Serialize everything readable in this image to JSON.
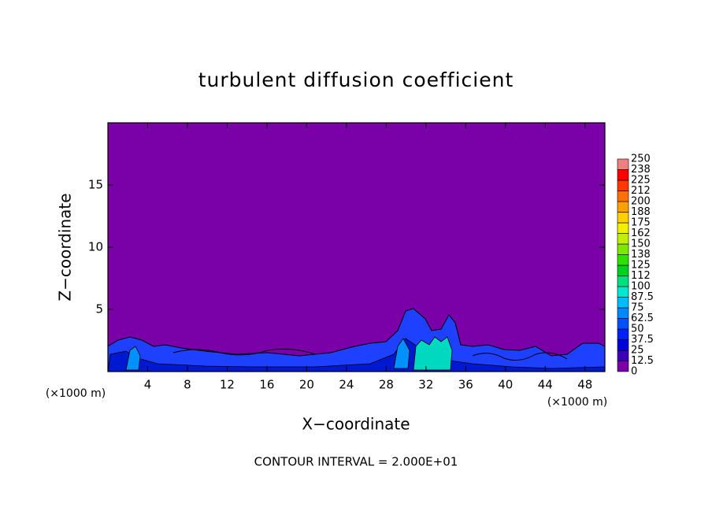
{
  "chart_data": {
    "type": "contour",
    "title": "turbulent diffusion coefficient",
    "x_label": "X−coordinate",
    "y_label": "Z−coordinate",
    "x_unit_left": "(×1000 m)",
    "x_unit_right": "(×1000 m)",
    "footer": "CONTOUR INTERVAL = 2.000E+01",
    "xlim": [
      0,
      50
    ],
    "xticks": [
      4,
      8,
      12,
      16,
      20,
      24,
      28,
      32,
      36,
      40,
      44,
      48
    ],
    "ylim": [
      0,
      20
    ],
    "yticks": [
      5,
      10,
      15
    ],
    "background_color": "#7a00a8",
    "colorbar": {
      "ticks": [
        0,
        12.5,
        25,
        37.5,
        50,
        62.5,
        75,
        87.5,
        100,
        112,
        125,
        138,
        150,
        162,
        175,
        188,
        200,
        212,
        225,
        238,
        250
      ],
      "colors": [
        "#7a00a8",
        "#3c00b8",
        "#0000d8",
        "#0020f8",
        "#0050ff",
        "#0088ff",
        "#00bcff",
        "#00e8d0",
        "#00e080",
        "#00d020",
        "#30e000",
        "#80e800",
        "#c0f000",
        "#f0f000",
        "#ffd000",
        "#ffa000",
        "#ff7000",
        "#ff3800",
        "#ff0000",
        "#f08080"
      ]
    }
  }
}
